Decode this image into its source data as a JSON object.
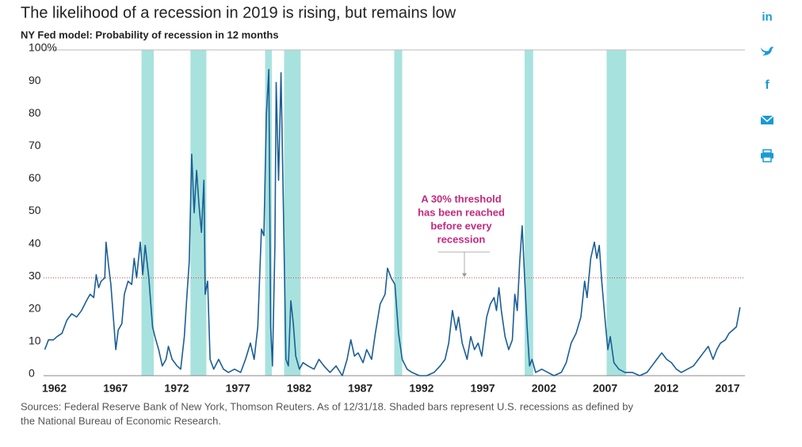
{
  "chart_data": {
    "type": "line",
    "title": "The likelihood of a recession in 2019 is rising, but remains low",
    "subtitle": "NY Fed model: Probability of recession in 12 months",
    "source": [
      "Sources: Federal Reserve Bank of New York, Thomson Reuters. As of 12/31/18. Shaded bars represent U.S. recessions as defined by",
      "the National Bureau of Economic Research."
    ],
    "color": "#1b5e96",
    "x": [
      1962.0,
      1962.3,
      1962.7,
      1963.0,
      1963.4,
      1963.8,
      1964.2,
      1964.6,
      1965.0,
      1965.4,
      1965.7,
      1966.0,
      1966.2,
      1966.4,
      1966.6,
      1966.9,
      1967.0,
      1967.2,
      1967.4,
      1967.6,
      1967.8,
      1968.0,
      1968.3,
      1968.5,
      1968.8,
      1969.1,
      1969.3,
      1969.5,
      1969.8,
      1970.0,
      1970.2,
      1970.5,
      1970.8,
      1971.0,
      1971.3,
      1971.6,
      1971.9,
      1972.1,
      1972.4,
      1972.8,
      1973.1,
      1973.4,
      1973.6,
      1973.8,
      1974.0,
      1974.2,
      1974.4,
      1974.6,
      1974.8,
      1975.0,
      1975.1,
      1975.3,
      1975.5,
      1975.8,
      1976.2,
      1976.6,
      1977.0,
      1977.5,
      1978.0,
      1978.4,
      1978.8,
      1979.1,
      1979.4,
      1979.7,
      1979.9,
      1980.1,
      1980.3,
      1980.45,
      1980.6,
      1980.8,
      1980.9,
      1981.1,
      1981.3,
      1981.5,
      1981.7,
      1981.9,
      1982.1,
      1982.3,
      1982.5,
      1982.8,
      1983.1,
      1983.5,
      1984.0,
      1984.4,
      1984.8,
      1985.3,
      1985.8,
      1986.3,
      1986.7,
      1987.0,
      1987.3,
      1987.6,
      1988.0,
      1988.3,
      1988.7,
      1989.0,
      1989.4,
      1989.8,
      1990.0,
      1990.3,
      1990.6,
      1990.9,
      1991.2,
      1991.6,
      1992.0,
      1992.6,
      1993.2,
      1993.8,
      1994.3,
      1994.7,
      1995.0,
      1995.3,
      1995.6,
      1995.8,
      1996.1,
      1996.5,
      1996.8,
      1997.1,
      1997.4,
      1997.7,
      1998.1,
      1998.4,
      1998.7,
      1998.9,
      1999.1,
      1999.3,
      1999.6,
      1999.9,
      2000.2,
      2000.4,
      2000.6,
      2000.8,
      2001.0,
      2001.2,
      2001.4,
      2001.6,
      2001.8,
      2002.1,
      2002.6,
      2003.1,
      2003.6,
      2004.2,
      2004.6,
      2005.0,
      2005.4,
      2005.8,
      2006.1,
      2006.3,
      2006.6,
      2006.9,
      2007.1,
      2007.3,
      2007.5,
      2007.8,
      2008.0,
      2008.2,
      2008.5,
      2008.9,
      2009.4,
      2010.0,
      2010.6,
      2011.2,
      2011.6,
      2012.0,
      2012.4,
      2012.8,
      2013.2,
      2013.6,
      2014.0,
      2014.5,
      2015.0,
      2015.4,
      2015.8,
      2016.2,
      2016.6,
      2016.9,
      2017.2,
      2017.6,
      2017.9,
      2018.2,
      2018.5,
      2018.8
    ],
    "values": [
      8,
      11,
      11,
      12,
      13,
      17,
      19,
      18,
      20,
      23,
      25,
      24,
      31,
      27,
      29,
      30,
      41,
      34,
      28,
      18,
      8,
      14,
      16,
      25,
      29,
      28,
      36,
      30,
      41,
      31,
      40,
      30,
      15,
      12,
      8,
      3,
      5,
      9,
      5,
      3,
      2,
      12,
      24,
      35,
      68,
      50,
      63,
      52,
      44,
      60,
      25,
      29,
      5,
      2,
      5,
      2,
      1,
      2,
      1,
      5,
      10,
      5,
      15,
      45,
      43,
      80,
      94,
      15,
      3,
      40,
      90,
      60,
      93,
      50,
      5,
      3,
      23,
      16,
      6,
      2,
      4,
      3,
      2,
      5,
      3,
      1,
      3,
      0,
      5,
      11,
      6,
      7,
      4,
      8,
      5,
      13,
      22,
      25,
      33,
      30,
      28,
      13,
      5,
      2,
      1,
      0,
      0,
      1,
      3,
      5,
      10,
      20,
      14,
      18,
      10,
      5,
      12,
      8,
      10,
      6,
      18,
      22,
      24,
      20,
      27,
      20,
      12,
      8,
      11,
      25,
      20,
      35,
      46,
      30,
      15,
      3,
      5,
      1,
      2,
      1,
      0,
      1,
      4,
      10,
      13,
      18,
      29,
      24,
      36,
      41,
      36,
      40,
      29,
      16,
      8,
      12,
      4,
      2,
      1,
      1,
      0,
      1,
      3,
      5,
      7,
      5,
      4,
      2,
      1,
      2,
      3,
      5,
      7,
      9,
      5,
      8,
      10,
      11,
      13,
      14,
      15,
      21
    ],
    "recessions": [
      [
        1969.9,
        1970.9
      ],
      [
        1973.9,
        1975.2
      ],
      [
        1980.0,
        1980.55
      ],
      [
        1981.55,
        1982.9
      ],
      [
        1990.55,
        1991.2
      ],
      [
        2001.2,
        2001.9
      ],
      [
        2007.9,
        2009.5
      ]
    ],
    "recession_color": "#a8e2de",
    "threshold": 30,
    "threshold_color": "#c0392b",
    "annotation": [
      "A 30% threshold",
      "has been reached",
      "before every",
      "recession"
    ],
    "annotation_color": "#c2297e",
    "xlim": [
      1961.9,
      2019.2
    ],
    "xticks": [
      1962,
      1967,
      1972,
      1977,
      1982,
      1987,
      1992,
      1997,
      2002,
      2007,
      2012,
      2017
    ],
    "ylim": [
      0,
      100
    ],
    "yticks": [
      0,
      10,
      20,
      30,
      40,
      50,
      60,
      70,
      80,
      90,
      {
        "value": 100,
        "label": "100%"
      }
    ],
    "grid": false
  },
  "share_icons": {
    "linkedin": "in",
    "facebook": "f"
  }
}
